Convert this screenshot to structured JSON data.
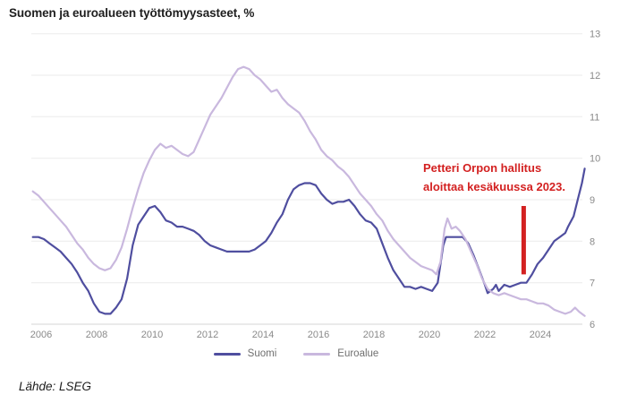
{
  "title": "Suomen ja euroalueen työttömyysasteet, %",
  "source": "Lähde: LSEG",
  "annotation": {
    "line1": "Petteri Orpon hallitus",
    "line2": "aloittaa kesäkuussa 2023.",
    "color": "#d32121",
    "marker": {
      "x": 2023.4,
      "y_from": 7.2,
      "y_to": 8.85
    }
  },
  "chart_data": {
    "type": "line",
    "title": "Suomen ja euroalueen työttömyysasteet, %",
    "ylabel": "%",
    "xlim": [
      2005.5,
      2025.8
    ],
    "ylim": [
      6,
      13
    ],
    "x_ticks": [
      2006,
      2008,
      2010,
      2012,
      2014,
      2016,
      2018,
      2020,
      2022,
      2024
    ],
    "y_ticks": [
      6,
      7,
      8,
      9,
      10,
      11,
      12,
      13
    ],
    "grid": true,
    "legend_position": "bottom-center",
    "series": [
      {
        "name": "Suomi",
        "color": "#4f4e9f",
        "points": [
          [
            2005.7,
            8.1
          ],
          [
            2005.9,
            8.1
          ],
          [
            2006.1,
            8.05
          ],
          [
            2006.3,
            7.95
          ],
          [
            2006.5,
            7.85
          ],
          [
            2006.7,
            7.75
          ],
          [
            2006.9,
            7.6
          ],
          [
            2007.1,
            7.45
          ],
          [
            2007.3,
            7.25
          ],
          [
            2007.5,
            7.0
          ],
          [
            2007.7,
            6.8
          ],
          [
            2007.9,
            6.5
          ],
          [
            2008.1,
            6.3
          ],
          [
            2008.3,
            6.25
          ],
          [
            2008.5,
            6.25
          ],
          [
            2008.7,
            6.4
          ],
          [
            2008.9,
            6.6
          ],
          [
            2009.1,
            7.1
          ],
          [
            2009.3,
            7.9
          ],
          [
            2009.5,
            8.4
          ],
          [
            2009.7,
            8.6
          ],
          [
            2009.9,
            8.8
          ],
          [
            2010.1,
            8.85
          ],
          [
            2010.3,
            8.7
          ],
          [
            2010.5,
            8.5
          ],
          [
            2010.7,
            8.45
          ],
          [
            2010.9,
            8.35
          ],
          [
            2011.1,
            8.35
          ],
          [
            2011.3,
            8.3
          ],
          [
            2011.5,
            8.25
          ],
          [
            2011.7,
            8.15
          ],
          [
            2011.9,
            8.0
          ],
          [
            2012.1,
            7.9
          ],
          [
            2012.3,
            7.85
          ],
          [
            2012.5,
            7.8
          ],
          [
            2012.7,
            7.75
          ],
          [
            2012.9,
            7.75
          ],
          [
            2013.1,
            7.75
          ],
          [
            2013.3,
            7.75
          ],
          [
            2013.5,
            7.75
          ],
          [
            2013.7,
            7.8
          ],
          [
            2013.9,
            7.9
          ],
          [
            2014.1,
            8.0
          ],
          [
            2014.3,
            8.2
          ],
          [
            2014.5,
            8.45
          ],
          [
            2014.7,
            8.65
          ],
          [
            2014.9,
            9.0
          ],
          [
            2015.1,
            9.25
          ],
          [
            2015.3,
            9.35
          ],
          [
            2015.5,
            9.4
          ],
          [
            2015.7,
            9.4
          ],
          [
            2015.9,
            9.35
          ],
          [
            2016.1,
            9.15
          ],
          [
            2016.3,
            9.0
          ],
          [
            2016.5,
            8.9
          ],
          [
            2016.7,
            8.95
          ],
          [
            2016.9,
            8.95
          ],
          [
            2017.1,
            9.0
          ],
          [
            2017.3,
            8.85
          ],
          [
            2017.5,
            8.65
          ],
          [
            2017.7,
            8.5
          ],
          [
            2017.9,
            8.45
          ],
          [
            2018.1,
            8.3
          ],
          [
            2018.3,
            7.95
          ],
          [
            2018.5,
            7.6
          ],
          [
            2018.7,
            7.3
          ],
          [
            2018.9,
            7.1
          ],
          [
            2019.1,
            6.9
          ],
          [
            2019.3,
            6.9
          ],
          [
            2019.5,
            6.85
          ],
          [
            2019.7,
            6.9
          ],
          [
            2019.9,
            6.85
          ],
          [
            2020.1,
            6.8
          ],
          [
            2020.3,
            7.0
          ],
          [
            2020.5,
            7.9
          ],
          [
            2020.6,
            8.1
          ],
          [
            2020.8,
            8.1
          ],
          [
            2021.0,
            8.1
          ],
          [
            2021.2,
            8.1
          ],
          [
            2021.4,
            7.95
          ],
          [
            2021.6,
            7.65
          ],
          [
            2021.8,
            7.3
          ],
          [
            2022.0,
            6.95
          ],
          [
            2022.1,
            6.75
          ],
          [
            2022.3,
            6.85
          ],
          [
            2022.4,
            6.95
          ],
          [
            2022.5,
            6.8
          ],
          [
            2022.7,
            6.95
          ],
          [
            2022.9,
            6.9
          ],
          [
            2023.1,
            6.95
          ],
          [
            2023.3,
            7.0
          ],
          [
            2023.5,
            7.0
          ],
          [
            2023.7,
            7.2
          ],
          [
            2023.9,
            7.45
          ],
          [
            2024.1,
            7.6
          ],
          [
            2024.3,
            7.8
          ],
          [
            2024.5,
            8.0
          ],
          [
            2024.7,
            8.1
          ],
          [
            2024.9,
            8.2
          ],
          [
            2025.0,
            8.35
          ],
          [
            2025.2,
            8.6
          ],
          [
            2025.35,
            9.0
          ],
          [
            2025.5,
            9.4
          ],
          [
            2025.6,
            9.75
          ]
        ]
      },
      {
        "name": "Euroalue",
        "color": "#c9b8de",
        "points": [
          [
            2005.7,
            9.2
          ],
          [
            2005.9,
            9.1
          ],
          [
            2006.1,
            8.95
          ],
          [
            2006.3,
            8.8
          ],
          [
            2006.5,
            8.65
          ],
          [
            2006.7,
            8.5
          ],
          [
            2006.9,
            8.35
          ],
          [
            2007.1,
            8.15
          ],
          [
            2007.3,
            7.95
          ],
          [
            2007.5,
            7.8
          ],
          [
            2007.7,
            7.6
          ],
          [
            2007.9,
            7.45
          ],
          [
            2008.1,
            7.35
          ],
          [
            2008.3,
            7.3
          ],
          [
            2008.5,
            7.35
          ],
          [
            2008.7,
            7.55
          ],
          [
            2008.9,
            7.85
          ],
          [
            2009.1,
            8.3
          ],
          [
            2009.3,
            8.8
          ],
          [
            2009.5,
            9.25
          ],
          [
            2009.7,
            9.65
          ],
          [
            2009.9,
            9.95
          ],
          [
            2010.1,
            10.2
          ],
          [
            2010.3,
            10.35
          ],
          [
            2010.5,
            10.25
          ],
          [
            2010.7,
            10.3
          ],
          [
            2010.9,
            10.2
          ],
          [
            2011.1,
            10.1
          ],
          [
            2011.3,
            10.05
          ],
          [
            2011.5,
            10.15
          ],
          [
            2011.7,
            10.45
          ],
          [
            2011.9,
            10.75
          ],
          [
            2012.1,
            11.05
          ],
          [
            2012.3,
            11.25
          ],
          [
            2012.5,
            11.45
          ],
          [
            2012.7,
            11.7
          ],
          [
            2012.9,
            11.95
          ],
          [
            2013.1,
            12.15
          ],
          [
            2013.3,
            12.2
          ],
          [
            2013.5,
            12.15
          ],
          [
            2013.7,
            12.0
          ],
          [
            2013.9,
            11.9
          ],
          [
            2014.1,
            11.75
          ],
          [
            2014.3,
            11.6
          ],
          [
            2014.5,
            11.65
          ],
          [
            2014.7,
            11.45
          ],
          [
            2014.9,
            11.3
          ],
          [
            2015.1,
            11.2
          ],
          [
            2015.3,
            11.1
          ],
          [
            2015.5,
            10.9
          ],
          [
            2015.7,
            10.65
          ],
          [
            2015.9,
            10.45
          ],
          [
            2016.1,
            10.2
          ],
          [
            2016.3,
            10.05
          ],
          [
            2016.5,
            9.95
          ],
          [
            2016.7,
            9.8
          ],
          [
            2016.9,
            9.7
          ],
          [
            2017.1,
            9.55
          ],
          [
            2017.3,
            9.35
          ],
          [
            2017.5,
            9.15
          ],
          [
            2017.7,
            9.0
          ],
          [
            2017.9,
            8.85
          ],
          [
            2018.1,
            8.65
          ],
          [
            2018.3,
            8.5
          ],
          [
            2018.5,
            8.25
          ],
          [
            2018.7,
            8.05
          ],
          [
            2018.9,
            7.9
          ],
          [
            2019.1,
            7.75
          ],
          [
            2019.3,
            7.6
          ],
          [
            2019.5,
            7.5
          ],
          [
            2019.7,
            7.4
          ],
          [
            2019.9,
            7.35
          ],
          [
            2020.1,
            7.3
          ],
          [
            2020.25,
            7.2
          ],
          [
            2020.4,
            7.5
          ],
          [
            2020.55,
            8.3
          ],
          [
            2020.65,
            8.55
          ],
          [
            2020.8,
            8.3
          ],
          [
            2020.95,
            8.35
          ],
          [
            2021.1,
            8.25
          ],
          [
            2021.3,
            8.05
          ],
          [
            2021.5,
            7.75
          ],
          [
            2021.7,
            7.45
          ],
          [
            2021.9,
            7.1
          ],
          [
            2022.1,
            6.85
          ],
          [
            2022.3,
            6.75
          ],
          [
            2022.5,
            6.7
          ],
          [
            2022.7,
            6.75
          ],
          [
            2022.9,
            6.7
          ],
          [
            2023.1,
            6.65
          ],
          [
            2023.3,
            6.6
          ],
          [
            2023.5,
            6.6
          ],
          [
            2023.7,
            6.55
          ],
          [
            2023.9,
            6.5
          ],
          [
            2024.1,
            6.5
          ],
          [
            2024.3,
            6.45
          ],
          [
            2024.5,
            6.35
          ],
          [
            2024.7,
            6.3
          ],
          [
            2024.9,
            6.25
          ],
          [
            2025.1,
            6.3
          ],
          [
            2025.25,
            6.4
          ],
          [
            2025.4,
            6.3
          ],
          [
            2025.6,
            6.2
          ]
        ]
      }
    ]
  }
}
